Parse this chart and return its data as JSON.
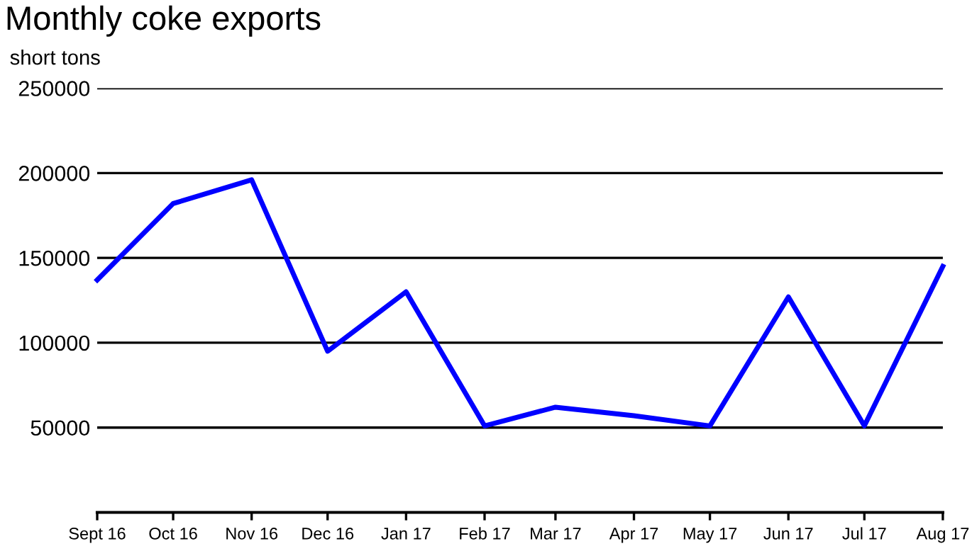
{
  "chart_data": {
    "type": "line",
    "title": "Monthly coke exports",
    "ylabel": "short tons",
    "x": [
      "2016-09",
      "2016-10",
      "2016-11",
      "2016-12",
      "2017-01",
      "2017-02",
      "2017-03",
      "2017-04",
      "2017-05",
      "2017-06",
      "2017-07",
      "2017-08"
    ],
    "series": [
      {
        "color": "#0000ff",
        "values": [
          137000,
          182000,
          196000,
          95000,
          130000,
          51000,
          62000,
          57000,
          51000,
          127000,
          51000,
          145000
        ]
      }
    ],
    "xlim": [
      "2016-09",
      "2017-08"
    ],
    "xticks": [
      {
        "value": "2016-09",
        "label": "Sept 16"
      },
      {
        "value": "2016-10",
        "label": "Oct 16"
      },
      {
        "value": "2016-11",
        "label": "Nov 16"
      },
      {
        "value": "2016-12",
        "label": "Dec 16"
      },
      {
        "value": "2017-01",
        "label": "Jan 17"
      },
      {
        "value": "2017-02",
        "label": "Feb 17"
      },
      {
        "value": "2017-03",
        "label": "Mar 17"
      },
      {
        "value": "2017-04",
        "label": "Apr 17"
      },
      {
        "value": "2017-05",
        "label": "May 17"
      },
      {
        "value": "2017-06",
        "label": "Jun 17"
      },
      {
        "value": "2017-07",
        "label": "Jul 17"
      },
      {
        "value": "2017-08",
        "label": "Aug 17"
      }
    ],
    "ylim": [
      0,
      250000
    ],
    "yticks": [
      50000,
      100000,
      150000,
      200000,
      250000
    ],
    "grid": "y",
    "legend": false,
    "marker": "none",
    "line_style": "solid"
  }
}
